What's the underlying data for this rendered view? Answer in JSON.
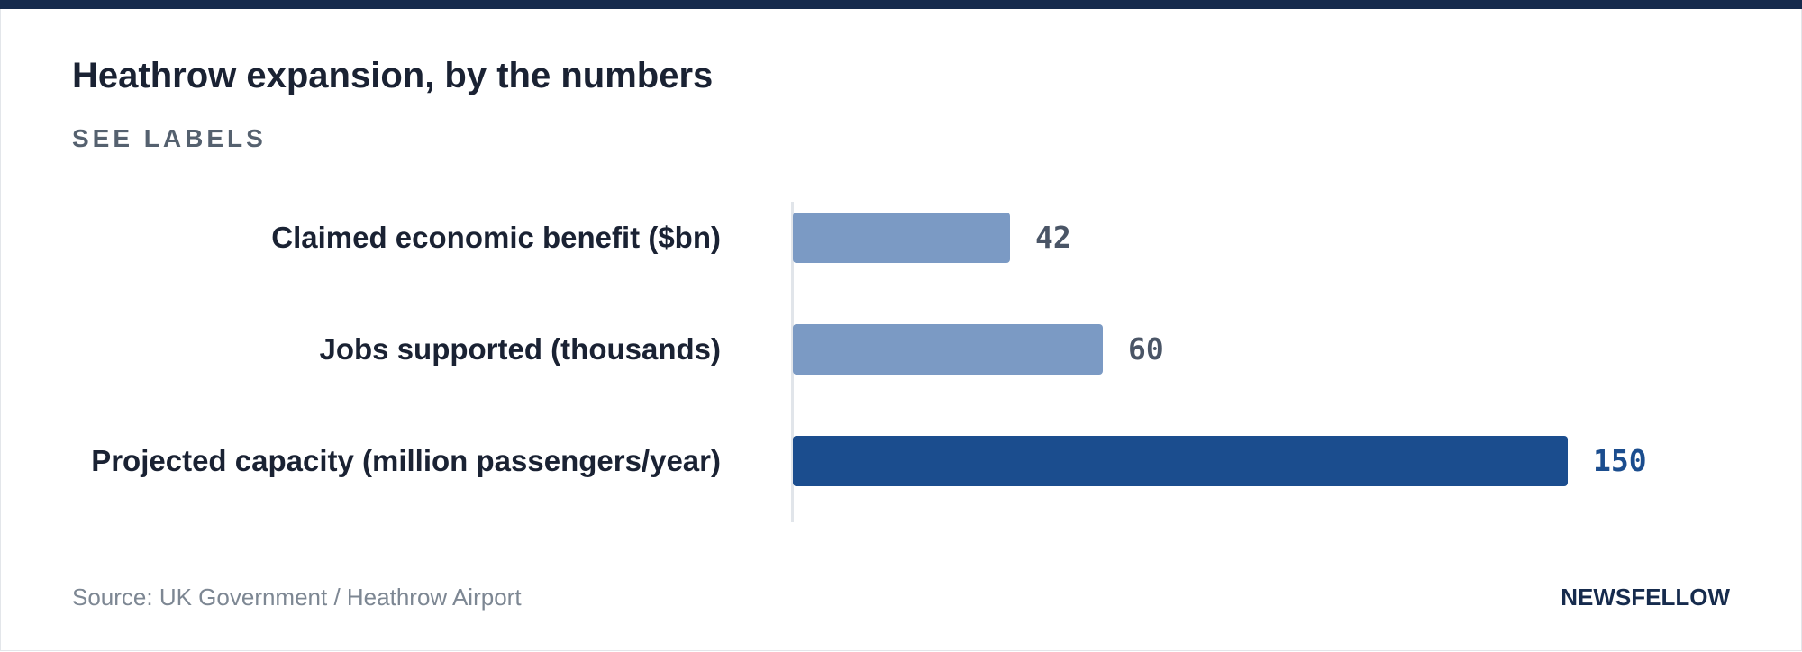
{
  "header": {
    "title": "Heathrow expansion, by the numbers",
    "subtitle": "SEE LABELS"
  },
  "footer": {
    "source": "Source: UK Government / Heathrow Airport",
    "brand": "NEWSFELLOW"
  },
  "colors": {
    "bar_default": "#7b9ac4",
    "bar_highlight": "#1b4d8e",
    "value_default": "#4a5566",
    "value_highlight": "#1b4d8e",
    "top_bar": "#162b4d"
  },
  "chart_data": {
    "type": "bar",
    "orientation": "horizontal",
    "title": "Heathrow expansion, by the numbers",
    "subtitle": "SEE LABELS",
    "categories": [
      "Claimed economic benefit ($bn)",
      "Jobs supported (thousands)",
      "Projected capacity (million passengers/year)"
    ],
    "values": [
      42,
      60,
      150
    ],
    "highlight": [
      false,
      false,
      true
    ],
    "xlim": [
      0,
      150
    ],
    "grid": false,
    "legend": "none"
  }
}
